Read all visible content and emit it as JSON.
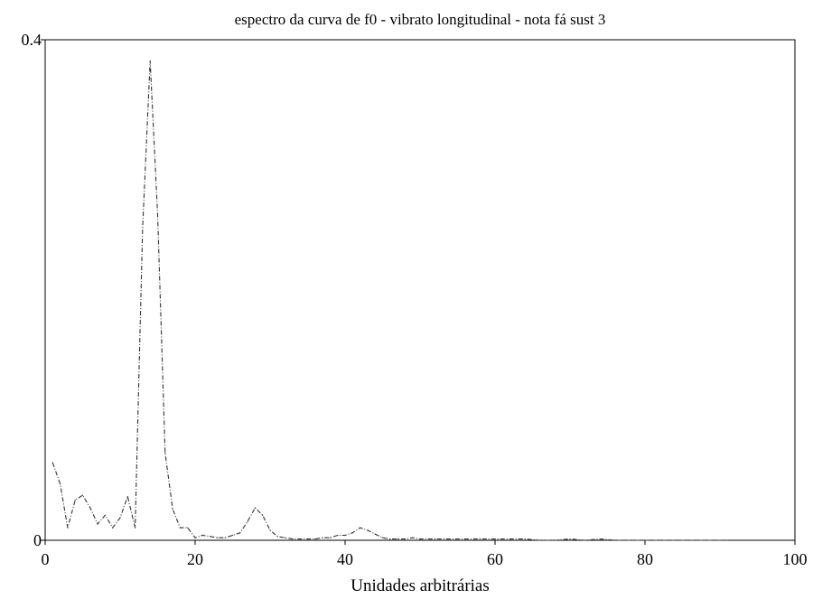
{
  "chart_data": {
    "type": "line",
    "title": "espectro da curva de f0 - vibrato longitudinal - nota fá sust 3",
    "xlabel": "Unidades arbitrárias",
    "ylabel": "",
    "xlim": [
      0,
      100
    ],
    "ylim": [
      0,
      0.4
    ],
    "x_ticks": [
      0,
      20,
      40,
      60,
      80,
      100
    ],
    "y_ticks": [
      0,
      0.4
    ],
    "x_tick_labels": [
      "0",
      "20",
      "40",
      "60",
      "80",
      "100"
    ],
    "y_tick_labels": [
      "0",
      "0.4"
    ],
    "grid": false,
    "line_style": "dash-dot",
    "colors": {
      "line": "#333333",
      "axis": "#000000"
    },
    "series": [
      {
        "x": [
          1,
          2,
          3,
          4,
          5,
          6,
          7,
          8,
          9,
          10,
          11,
          12,
          13,
          14,
          15,
          16,
          17,
          18,
          19,
          20,
          21,
          22,
          23,
          24,
          25,
          26,
          27,
          28,
          29,
          30,
          31,
          32,
          33,
          34,
          35,
          36,
          37,
          38,
          39,
          40,
          41,
          42,
          43,
          44,
          45,
          46,
          47,
          48,
          49,
          50,
          52,
          54,
          56,
          58,
          60,
          62,
          64,
          66,
          68,
          70,
          72,
          74,
          76,
          78,
          80,
          82,
          84,
          86,
          88,
          90,
          91
        ],
        "y": [
          0.062,
          0.045,
          0.01,
          0.032,
          0.036,
          0.026,
          0.013,
          0.02,
          0.01,
          0.018,
          0.035,
          0.01,
          0.25,
          0.383,
          0.26,
          0.07,
          0.025,
          0.01,
          0.01,
          0.002,
          0.004,
          0.003,
          0.002,
          0.002,
          0.004,
          0.006,
          0.015,
          0.026,
          0.02,
          0.008,
          0.003,
          0.002,
          0.001,
          0.001,
          0.001,
          0.001,
          0.002,
          0.002,
          0.004,
          0.004,
          0.006,
          0.01,
          0.008,
          0.005,
          0.002,
          0.001,
          0.001,
          0.001,
          0.002,
          0.001,
          0.001,
          0.001,
          0.001,
          0.001,
          0.001,
          0.001,
          0.001,
          0.0,
          0.0,
          0.001,
          0.0,
          0.001,
          0.0,
          0.0,
          0.0,
          0.0,
          0.0,
          0.0,
          0.0,
          0.0,
          0.0
        ]
      }
    ]
  }
}
